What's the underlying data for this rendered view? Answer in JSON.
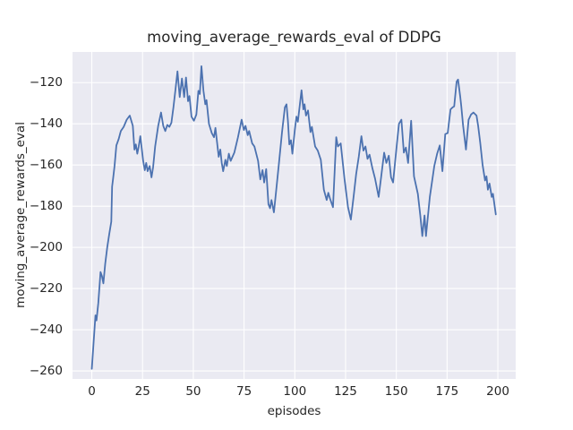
{
  "chart_data": {
    "type": "line",
    "title": "moving_average_rewards_eval of DDPG",
    "xlabel": "episodes",
    "ylabel": "moving_average_rewards_eval",
    "x_ticks": [
      0,
      25,
      50,
      75,
      100,
      125,
      150,
      175,
      200
    ],
    "y_ticks": [
      -120,
      -140,
      -160,
      -180,
      -200,
      -220,
      -240,
      -260
    ],
    "xlim": [
      -9.5,
      208.8
    ],
    "ylim": [
      -263.9,
      -105.1
    ],
    "grid": true,
    "legend": false,
    "colors": {
      "line": "#4c72b0",
      "axes_background": "#eaeaf2",
      "grid": "#ffffff",
      "text": "#262626",
      "figure_background": "#ffffff"
    },
    "series": [
      {
        "name": "moving_average_rewards_eval",
        "points": [
          [
            0,
            -259
          ],
          [
            0.9,
            -246
          ],
          [
            1.8,
            -233
          ],
          [
            2.3,
            -235.5
          ],
          [
            3.2,
            -227
          ],
          [
            4.3,
            -212
          ],
          [
            5,
            -214
          ],
          [
            5.7,
            -217.5
          ],
          [
            6.6,
            -208
          ],
          [
            7.6,
            -200
          ],
          [
            8.6,
            -193.5
          ],
          [
            9.6,
            -187.5
          ],
          [
            10,
            -170.5
          ],
          [
            10.5,
            -166.5
          ],
          [
            11.2,
            -160.5
          ],
          [
            12.1,
            -150.5
          ],
          [
            13.2,
            -147.5
          ],
          [
            14.3,
            -143.5
          ],
          [
            15.7,
            -141.5
          ],
          [
            17.2,
            -138
          ],
          [
            18.7,
            -136
          ],
          [
            20.2,
            -141
          ],
          [
            21,
            -152.5
          ],
          [
            21.7,
            -150
          ],
          [
            22.4,
            -154.5
          ],
          [
            23.1,
            -151
          ],
          [
            23.9,
            -146
          ],
          [
            25.3,
            -158
          ],
          [
            26.1,
            -162.5
          ],
          [
            26.8,
            -159
          ],
          [
            27.5,
            -163
          ],
          [
            28.5,
            -160.5
          ],
          [
            29.4,
            -166
          ],
          [
            30.2,
            -161
          ],
          [
            31.2,
            -151
          ],
          [
            32.7,
            -141
          ],
          [
            34.1,
            -134.5
          ],
          [
            35.2,
            -141
          ],
          [
            36.2,
            -143.5
          ],
          [
            37.2,
            -140.5
          ],
          [
            38.2,
            -141.5
          ],
          [
            39.2,
            -139.5
          ],
          [
            40.2,
            -132
          ],
          [
            41.2,
            -123.5
          ],
          [
            42.2,
            -114.5
          ],
          [
            43.3,
            -127
          ],
          [
            44.4,
            -118
          ],
          [
            45.5,
            -127
          ],
          [
            46.4,
            -117.5
          ],
          [
            47.4,
            -129
          ],
          [
            48.1,
            -126.5
          ],
          [
            49.1,
            -136.5
          ],
          [
            50.3,
            -138.5
          ],
          [
            51.5,
            -135.5
          ],
          [
            52.5,
            -124
          ],
          [
            53.2,
            -125.5
          ],
          [
            54,
            -112
          ],
          [
            55,
            -124
          ],
          [
            55.9,
            -130.5
          ],
          [
            56.5,
            -128.5
          ],
          [
            57.7,
            -140
          ],
          [
            59.1,
            -144.5
          ],
          [
            60.2,
            -146.5
          ],
          [
            60.9,
            -142
          ],
          [
            62.5,
            -156
          ],
          [
            63.3,
            -152.5
          ],
          [
            64,
            -159
          ],
          [
            64.7,
            -163
          ],
          [
            65.8,
            -157.5
          ],
          [
            66.5,
            -160.5
          ],
          [
            67.5,
            -154.5
          ],
          [
            68.4,
            -158
          ],
          [
            70.2,
            -154
          ],
          [
            72,
            -146.5
          ],
          [
            73.8,
            -138
          ],
          [
            74.9,
            -143
          ],
          [
            75.7,
            -141
          ],
          [
            76.8,
            -145.5
          ],
          [
            77.5,
            -143.5
          ],
          [
            79,
            -149.5
          ],
          [
            80.1,
            -151
          ],
          [
            81.9,
            -158
          ],
          [
            83,
            -167
          ],
          [
            84.1,
            -162.5
          ],
          [
            84.9,
            -168.5
          ],
          [
            85.9,
            -162
          ],
          [
            87,
            -179
          ],
          [
            87.8,
            -181
          ],
          [
            88.5,
            -177
          ],
          [
            89.7,
            -183
          ],
          [
            90.7,
            -173.5
          ],
          [
            92.2,
            -159
          ],
          [
            93.7,
            -144
          ],
          [
            95.1,
            -132
          ],
          [
            95.9,
            -130.5
          ],
          [
            96.6,
            -138.5
          ],
          [
            97.3,
            -150
          ],
          [
            98.1,
            -148
          ],
          [
            98.8,
            -154.5
          ],
          [
            100,
            -143
          ],
          [
            100.8,
            -136.5
          ],
          [
            101.5,
            -139
          ],
          [
            103.3,
            -123.7
          ],
          [
            104.2,
            -133
          ],
          [
            104.8,
            -130.5
          ],
          [
            105.5,
            -136
          ],
          [
            106.5,
            -133.5
          ],
          [
            107.7,
            -144
          ],
          [
            108.4,
            -141.5
          ],
          [
            110,
            -151
          ],
          [
            111.3,
            -153
          ],
          [
            112.8,
            -157.5
          ],
          [
            114.3,
            -172
          ],
          [
            115.7,
            -177
          ],
          [
            116.5,
            -173.5
          ],
          [
            117.4,
            -176.5
          ],
          [
            118.8,
            -180.5
          ],
          [
            120.4,
            -146.5
          ],
          [
            121.2,
            -151
          ],
          [
            122.6,
            -149.5
          ],
          [
            124.5,
            -167
          ],
          [
            126.2,
            -180.5
          ],
          [
            127.6,
            -186.5
          ],
          [
            129,
            -175
          ],
          [
            130.2,
            -164.5
          ],
          [
            131.5,
            -156
          ],
          [
            132.8,
            -146
          ],
          [
            133.8,
            -153
          ],
          [
            134.8,
            -151
          ],
          [
            135.8,
            -157
          ],
          [
            136.8,
            -155
          ],
          [
            138.2,
            -161.5
          ],
          [
            139.5,
            -166.5
          ],
          [
            141.3,
            -175.5
          ],
          [
            142.5,
            -166
          ],
          [
            144,
            -154
          ],
          [
            145.1,
            -159
          ],
          [
            146.3,
            -155.5
          ],
          [
            147.4,
            -166
          ],
          [
            148.4,
            -168.5
          ],
          [
            150.3,
            -149.5
          ],
          [
            151.3,
            -140
          ],
          [
            152.5,
            -138
          ],
          [
            153.7,
            -154
          ],
          [
            154.7,
            -151.5
          ],
          [
            155.8,
            -159
          ],
          [
            157.3,
            -138.5
          ],
          [
            158.7,
            -165.5
          ],
          [
            160.6,
            -174
          ],
          [
            161.8,
            -184.5
          ],
          [
            162.8,
            -194.5
          ],
          [
            163.9,
            -184.5
          ],
          [
            164.6,
            -194.5
          ],
          [
            166.5,
            -175.5
          ],
          [
            167.6,
            -168
          ],
          [
            168.7,
            -160.5
          ],
          [
            170.1,
            -154.5
          ],
          [
            171.4,
            -150.5
          ],
          [
            172.7,
            -163
          ],
          [
            174.1,
            -145
          ],
          [
            175.3,
            -144.5
          ],
          [
            176.7,
            -133
          ],
          [
            177.7,
            -132
          ],
          [
            178.5,
            -131.5
          ],
          [
            179.7,
            -119.5
          ],
          [
            180.4,
            -118.5
          ],
          [
            181.5,
            -127
          ],
          [
            182,
            -131.5
          ],
          [
            182.9,
            -141
          ],
          [
            184.3,
            -152.5
          ],
          [
            185.6,
            -138
          ],
          [
            186.8,
            -135.5
          ],
          [
            188,
            -134.5
          ],
          [
            189.5,
            -136
          ],
          [
            190.3,
            -141
          ],
          [
            191.3,
            -149
          ],
          [
            192.5,
            -160
          ],
          [
            193.7,
            -167.5
          ],
          [
            194.4,
            -165.5
          ],
          [
            195.1,
            -172
          ],
          [
            195.9,
            -169
          ],
          [
            197,
            -175.5
          ],
          [
            197.6,
            -174
          ],
          [
            199,
            -184
          ]
        ]
      }
    ]
  }
}
